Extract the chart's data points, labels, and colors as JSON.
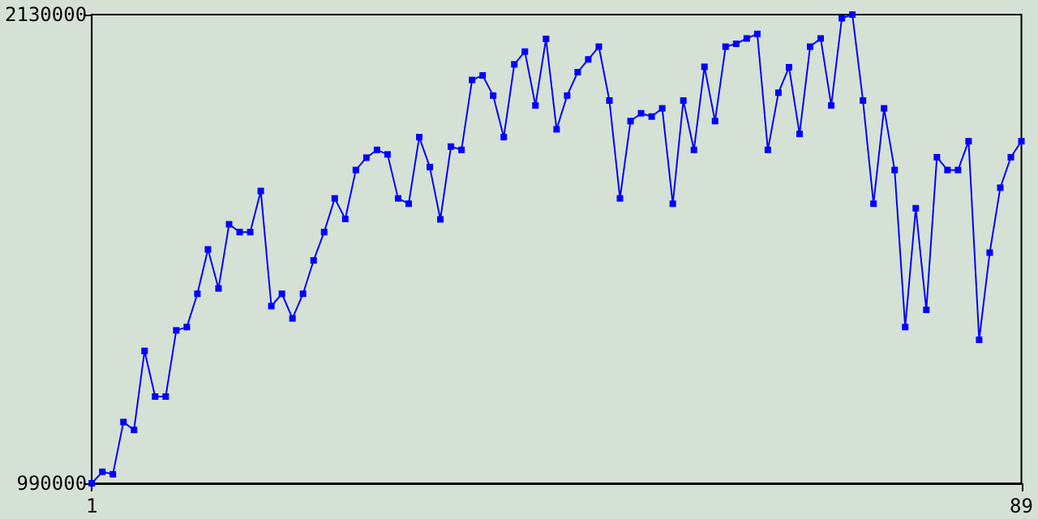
{
  "chart_data": {
    "type": "line",
    "x": [
      1,
      2,
      3,
      4,
      5,
      6,
      7,
      8,
      9,
      10,
      11,
      12,
      13,
      14,
      15,
      16,
      17,
      18,
      19,
      20,
      21,
      22,
      23,
      24,
      25,
      26,
      27,
      28,
      29,
      30,
      31,
      32,
      33,
      34,
      35,
      36,
      37,
      38,
      39,
      40,
      41,
      42,
      43,
      44,
      45,
      46,
      47,
      48,
      49,
      50,
      51,
      52,
      53,
      54,
      55,
      56,
      57,
      58,
      59,
      60,
      61,
      62,
      63,
      64,
      65,
      66,
      67,
      68,
      69,
      70,
      71,
      72,
      73,
      74,
      75,
      76,
      77,
      78,
      79,
      80,
      81,
      82,
      83,
      84,
      85,
      86,
      87,
      88,
      89
    ],
    "series": [
      {
        "color": "#0000ff",
        "values": [
          990000,
          1018000,
          1012000,
          1139000,
          1120000,
          1312000,
          1201000,
          1201000,
          1362000,
          1370000,
          1451000,
          1559000,
          1464000,
          1620000,
          1601000,
          1601000,
          1701000,
          1421000,
          1451000,
          1391000,
          1451000,
          1532000,
          1601000,
          1683000,
          1633000,
          1752000,
          1782000,
          1801000,
          1790000,
          1683000,
          1670000,
          1832000,
          1759000,
          1632000,
          1809000,
          1801000,
          1971000,
          1982000,
          1933000,
          1832000,
          2009000,
          2040000,
          1909000,
          2071000,
          1851000,
          1933000,
          1990000,
          2021000,
          2052000,
          1921000,
          1683000,
          1871000,
          1890000,
          1882000,
          1902000,
          1670000,
          1921000,
          1801000,
          2003000,
          1871000,
          2052000,
          2059000,
          2072000,
          2083000,
          1801000,
          1940000,
          2002000,
          1840000,
          2052000,
          2072000,
          1909000,
          2121000,
          2130000,
          1921000,
          1670000,
          1902000,
          1752000,
          1370000,
          1659000,
          1412000,
          1783000,
          1752000,
          1752000,
          1822000,
          1339000,
          1551000,
          1709000,
          1783000,
          1822000
        ]
      }
    ],
    "xlim": [
      1,
      89
    ],
    "xticks": [
      1,
      89
    ],
    "ylim": [
      990000,
      2130000
    ],
    "yticks": [
      990000,
      2130000
    ],
    "grid": false,
    "marker": "square",
    "line_style": "solid"
  }
}
